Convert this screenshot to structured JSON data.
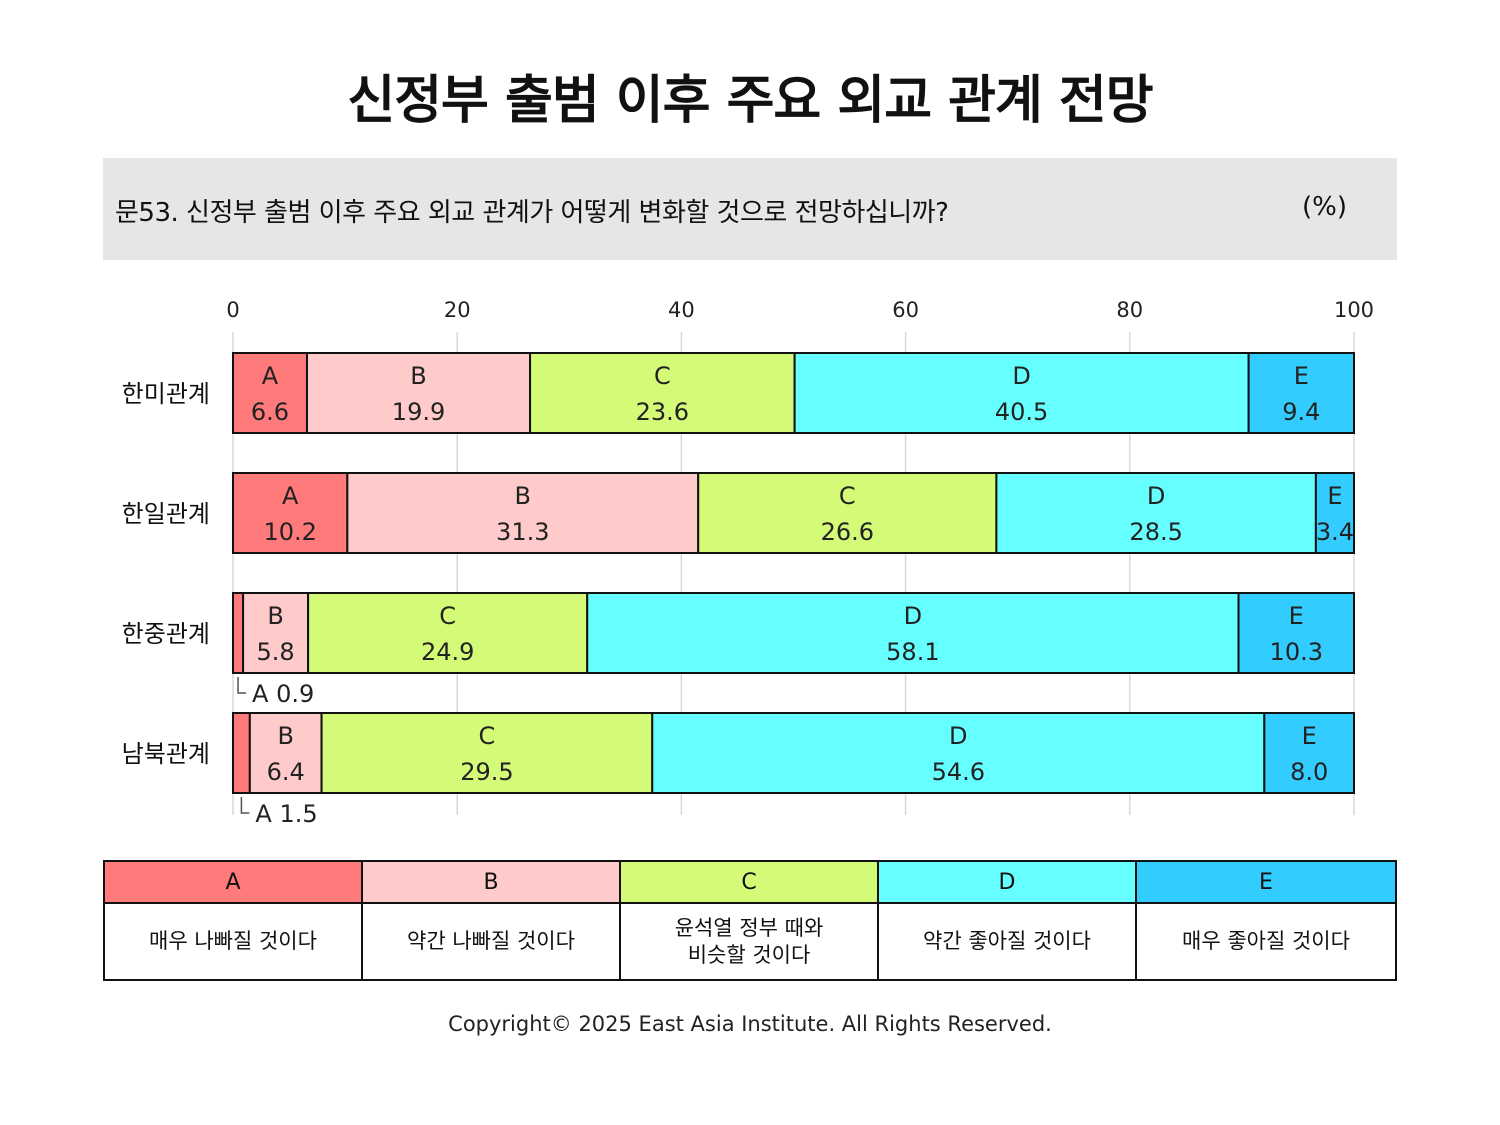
{
  "title": "신정부 출범 이후 주요 외교 관계 전망",
  "question": "문53. 신정부 출범 이후 주요 외교 관계가 어떻게 변화할 것으로 전망하십니까?",
  "unit": "(%)",
  "copyright": "Copyright© 2025 East Asia Institute. All Rights Reserved.",
  "legend": [
    {
      "key": "A",
      "desc": "매우 나빠질 것이다",
      "color": "#ff7a7a"
    },
    {
      "key": "B",
      "desc": "약간 나빠질 것이다",
      "color": "#ffcaca"
    },
    {
      "key": "C",
      "desc": "윤석열 정부 때와\n비슷할 것이다",
      "color": "#d4fb78"
    },
    {
      "key": "D",
      "desc": "약간 좋아질 것이다",
      "color": "#66ffff"
    },
    {
      "key": "E",
      "desc": "매우 좋아질 것이다",
      "color": "#33ccff"
    }
  ],
  "chart_data": {
    "type": "bar",
    "orientation": "horizontal",
    "stacked": true,
    "categories": [
      "한미관계",
      "한일관계",
      "한중관계",
      "남북관계"
    ],
    "series": [
      {
        "name": "A",
        "values": [
          6.6,
          10.2,
          0.9,
          1.5
        ]
      },
      {
        "name": "B",
        "values": [
          19.9,
          31.3,
          5.8,
          6.4
        ]
      },
      {
        "name": "C",
        "values": [
          23.6,
          26.6,
          24.9,
          29.5
        ]
      },
      {
        "name": "D",
        "values": [
          40.5,
          28.5,
          58.1,
          54.6
        ]
      },
      {
        "name": "E",
        "values": [
          9.4,
          3.4,
          10.3,
          8.0
        ]
      }
    ],
    "xlim": [
      0,
      100
    ],
    "xticks": [
      0,
      20,
      40,
      60,
      80,
      100
    ],
    "grid": true,
    "callouts": [
      {
        "category": "한중관계",
        "series": "A",
        "label": "A 0.9"
      },
      {
        "category": "남북관계",
        "series": "A",
        "label": "A 1.5"
      }
    ]
  }
}
